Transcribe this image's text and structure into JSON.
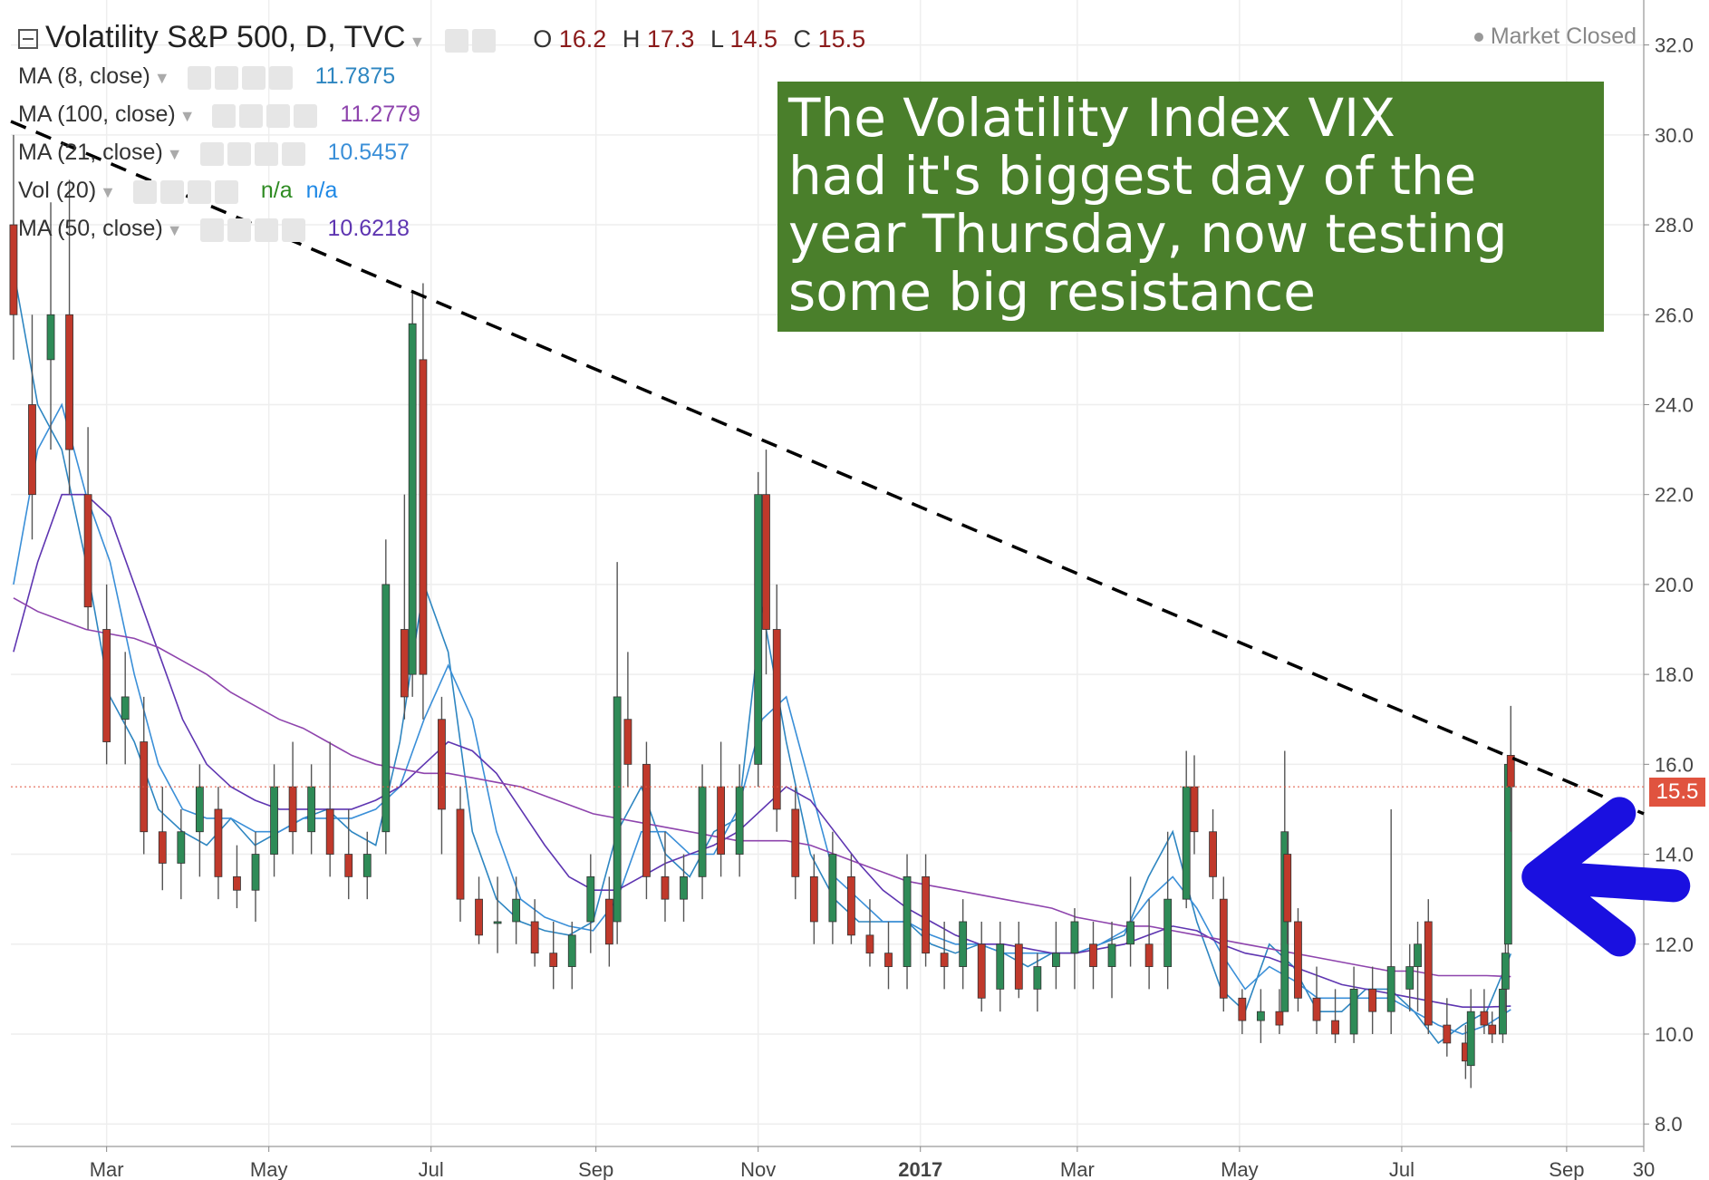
{
  "header": {
    "symbol_title": "Volatility S&P 500, D, TVC",
    "ohlc": {
      "o_label": "O",
      "o": "16.2",
      "h_label": "H",
      "h": "17.3",
      "l_label": "L",
      "l": "14.5",
      "c_label": "C",
      "c": "15.5"
    },
    "market_status": "Market Closed"
  },
  "indicators": [
    {
      "label": "MA (8, close)",
      "value": "11.7875",
      "color": "#2e86c1"
    },
    {
      "label": "MA (100, close)",
      "value": "11.2779",
      "color": "#8e44ad"
    },
    {
      "label": "MA (21, close)",
      "value": "10.5457",
      "color": "#3a8fd8"
    },
    {
      "label": "Vol (20)",
      "value": "n/a",
      "value2": "n/a",
      "color": "#2e8b22",
      "color2": "#1e88e5"
    },
    {
      "label": "MA (50, close)",
      "value": "10.6218",
      "color": "#5e35b1"
    }
  ],
  "annotation": {
    "line1": "The Volatility Index VIX",
    "line2": "had it's biggest day of the",
    "line3": "year Thursday, now testing",
    "line4": "some big resistance",
    "bg_color": "#4a7f2b"
  },
  "last_price_label": "15.5",
  "chart_data": {
    "type": "candlestick",
    "title": "Volatility S&P 500, D, TVC",
    "x_ticks": [
      "Mar",
      "May",
      "Jul",
      "Sep",
      "Nov",
      "2017",
      "Mar",
      "May",
      "Jul",
      "Sep",
      "30"
    ],
    "y_ticks": [
      "32.0",
      "30.0",
      "28.0",
      "26.0",
      "24.0",
      "22.0",
      "20.0",
      "18.0",
      "16.0",
      "14.0",
      "12.0",
      "10.0",
      "8.0"
    ],
    "ylim": [
      7.5,
      33
    ],
    "x_range": [
      "2016-01-25",
      "2017-09-30"
    ],
    "last_close": 15.5,
    "up_color": "#2e8b57",
    "down_color": "#c0392b",
    "ohlc": [
      {
        "date": "2016-01-26",
        "o": 28.0,
        "h": 30.0,
        "l": 25.0,
        "c": 26.0
      },
      {
        "date": "2016-02-02",
        "o": 24.0,
        "h": 26.0,
        "l": 21.0,
        "c": 22.0
      },
      {
        "date": "2016-02-09",
        "o": 25.0,
        "h": 28.5,
        "l": 23.0,
        "c": 26.0
      },
      {
        "date": "2016-02-16",
        "o": 26.0,
        "h": 29.0,
        "l": 22.0,
        "c": 23.0
      },
      {
        "date": "2016-02-23",
        "o": 22.0,
        "h": 23.5,
        "l": 19.0,
        "c": 19.5
      },
      {
        "date": "2016-03-01",
        "o": 19.0,
        "h": 20.0,
        "l": 16.0,
        "c": 16.5
      },
      {
        "date": "2016-03-08",
        "o": 17.0,
        "h": 18.5,
        "l": 16.0,
        "c": 17.5
      },
      {
        "date": "2016-03-15",
        "o": 16.5,
        "h": 17.5,
        "l": 14.0,
        "c": 14.5
      },
      {
        "date": "2016-03-22",
        "o": 14.5,
        "h": 15.5,
        "l": 13.2,
        "c": 13.8
      },
      {
        "date": "2016-03-29",
        "o": 13.8,
        "h": 15.0,
        "l": 13.0,
        "c": 14.5
      },
      {
        "date": "2016-04-05",
        "o": 14.5,
        "h": 16.0,
        "l": 13.5,
        "c": 15.5
      },
      {
        "date": "2016-04-12",
        "o": 15.0,
        "h": 15.5,
        "l": 13.0,
        "c": 13.5
      },
      {
        "date": "2016-04-19",
        "o": 13.5,
        "h": 14.2,
        "l": 12.8,
        "c": 13.2
      },
      {
        "date": "2016-04-26",
        "o": 13.2,
        "h": 14.5,
        "l": 12.5,
        "c": 14.0
      },
      {
        "date": "2016-05-03",
        "o": 14.0,
        "h": 16.0,
        "l": 13.5,
        "c": 15.5
      },
      {
        "date": "2016-05-10",
        "o": 15.5,
        "h": 16.5,
        "l": 14.0,
        "c": 14.5
      },
      {
        "date": "2016-05-17",
        "o": 14.5,
        "h": 16.0,
        "l": 14.0,
        "c": 15.5
      },
      {
        "date": "2016-05-24",
        "o": 15.0,
        "h": 16.5,
        "l": 13.5,
        "c": 14.0
      },
      {
        "date": "2016-05-31",
        "o": 14.0,
        "h": 15.0,
        "l": 13.0,
        "c": 13.5
      },
      {
        "date": "2016-06-07",
        "o": 13.5,
        "h": 14.5,
        "l": 13.0,
        "c": 14.0
      },
      {
        "date": "2016-06-14",
        "o": 14.5,
        "h": 21.0,
        "l": 14.0,
        "c": 20.0
      },
      {
        "date": "2016-06-21",
        "o": 19.0,
        "h": 22.0,
        "l": 17.0,
        "c": 17.5
      },
      {
        "date": "2016-06-24",
        "o": 18.0,
        "h": 26.5,
        "l": 17.5,
        "c": 25.8
      },
      {
        "date": "2016-06-28",
        "o": 25.0,
        "h": 26.7,
        "l": 17.0,
        "c": 18.0
      },
      {
        "date": "2016-07-05",
        "o": 17.0,
        "h": 17.5,
        "l": 14.0,
        "c": 15.0
      },
      {
        "date": "2016-07-12",
        "o": 15.0,
        "h": 15.5,
        "l": 12.5,
        "c": 13.0
      },
      {
        "date": "2016-07-19",
        "o": 13.0,
        "h": 13.5,
        "l": 12.0,
        "c": 12.2
      },
      {
        "date": "2016-07-26",
        "o": 12.5,
        "h": 13.5,
        "l": 11.8,
        "c": 12.5
      },
      {
        "date": "2016-08-02",
        "o": 12.5,
        "h": 13.5,
        "l": 12.0,
        "c": 13.0
      },
      {
        "date": "2016-08-09",
        "o": 12.5,
        "h": 13.0,
        "l": 11.5,
        "c": 11.8
      },
      {
        "date": "2016-08-16",
        "o": 11.8,
        "h": 12.5,
        "l": 11.0,
        "c": 11.5
      },
      {
        "date": "2016-08-23",
        "o": 11.5,
        "h": 12.5,
        "l": 11.0,
        "c": 12.2
      },
      {
        "date": "2016-08-30",
        "o": 12.5,
        "h": 14.0,
        "l": 11.8,
        "c": 13.5
      },
      {
        "date": "2016-09-06",
        "o": 13.0,
        "h": 13.5,
        "l": 11.5,
        "c": 12.0
      },
      {
        "date": "2016-09-09",
        "o": 12.5,
        "h": 20.5,
        "l": 12.0,
        "c": 17.5
      },
      {
        "date": "2016-09-13",
        "o": 17.0,
        "h": 18.5,
        "l": 15.5,
        "c": 16.0
      },
      {
        "date": "2016-09-20",
        "o": 16.0,
        "h": 16.5,
        "l": 13.0,
        "c": 13.5
      },
      {
        "date": "2016-09-27",
        "o": 13.5,
        "h": 14.5,
        "l": 12.5,
        "c": 13.0
      },
      {
        "date": "2016-10-04",
        "o": 13.0,
        "h": 14.0,
        "l": 12.5,
        "c": 13.5
      },
      {
        "date": "2016-10-11",
        "o": 13.5,
        "h": 16.0,
        "l": 13.0,
        "c": 15.5
      },
      {
        "date": "2016-10-18",
        "o": 15.5,
        "h": 16.5,
        "l": 13.5,
        "c": 14.0
      },
      {
        "date": "2016-10-25",
        "o": 14.0,
        "h": 16.0,
        "l": 13.5,
        "c": 15.5
      },
      {
        "date": "2016-11-01",
        "o": 16.0,
        "h": 22.5,
        "l": 15.5,
        "c": 22.0
      },
      {
        "date": "2016-11-04",
        "o": 22.0,
        "h": 23.0,
        "l": 18.0,
        "c": 19.0
      },
      {
        "date": "2016-11-08",
        "o": 19.0,
        "h": 20.0,
        "l": 14.5,
        "c": 15.0
      },
      {
        "date": "2016-11-15",
        "o": 15.0,
        "h": 15.5,
        "l": 13.0,
        "c": 13.5
      },
      {
        "date": "2016-11-22",
        "o": 13.5,
        "h": 14.0,
        "l": 12.0,
        "c": 12.5
      },
      {
        "date": "2016-11-29",
        "o": 12.5,
        "h": 14.5,
        "l": 12.0,
        "c": 14.0
      },
      {
        "date": "2016-12-06",
        "o": 13.5,
        "h": 14.0,
        "l": 12.0,
        "c": 12.2
      },
      {
        "date": "2016-12-13",
        "o": 12.2,
        "h": 13.0,
        "l": 11.5,
        "c": 11.8
      },
      {
        "date": "2016-12-20",
        "o": 11.8,
        "h": 12.5,
        "l": 11.0,
        "c": 11.5
      },
      {
        "date": "2016-12-27",
        "o": 11.5,
        "h": 14.0,
        "l": 11.0,
        "c": 13.5
      },
      {
        "date": "2017-01-03",
        "o": 13.5,
        "h": 14.0,
        "l": 11.5,
        "c": 11.8
      },
      {
        "date": "2017-01-10",
        "o": 11.8,
        "h": 12.5,
        "l": 11.0,
        "c": 11.5
      },
      {
        "date": "2017-01-17",
        "o": 11.5,
        "h": 13.0,
        "l": 11.0,
        "c": 12.5
      },
      {
        "date": "2017-01-24",
        "o": 12.0,
        "h": 12.5,
        "l": 10.5,
        "c": 10.8
      },
      {
        "date": "2017-01-31",
        "o": 11.0,
        "h": 12.5,
        "l": 10.5,
        "c": 12.0
      },
      {
        "date": "2017-02-07",
        "o": 12.0,
        "h": 12.5,
        "l": 10.8,
        "c": 11.0
      },
      {
        "date": "2017-02-14",
        "o": 11.0,
        "h": 11.8,
        "l": 10.5,
        "c": 11.5
      },
      {
        "date": "2017-02-21",
        "o": 11.5,
        "h": 12.5,
        "l": 11.0,
        "c": 11.8
      },
      {
        "date": "2017-02-28",
        "o": 11.8,
        "h": 12.8,
        "l": 11.0,
        "c": 12.5
      },
      {
        "date": "2017-03-07",
        "o": 12.0,
        "h": 12.5,
        "l": 11.0,
        "c": 11.5
      },
      {
        "date": "2017-03-14",
        "o": 11.5,
        "h": 12.5,
        "l": 10.8,
        "c": 12.0
      },
      {
        "date": "2017-03-21",
        "o": 12.0,
        "h": 13.5,
        "l": 11.5,
        "c": 12.5
      },
      {
        "date": "2017-03-28",
        "o": 12.0,
        "h": 13.0,
        "l": 11.0,
        "c": 11.5
      },
      {
        "date": "2017-04-04",
        "o": 11.5,
        "h": 14.5,
        "l": 11.0,
        "c": 13.0
      },
      {
        "date": "2017-04-11",
        "o": 13.0,
        "h": 16.3,
        "l": 12.8,
        "c": 15.5
      },
      {
        "date": "2017-04-14",
        "o": 15.5,
        "h": 16.2,
        "l": 14.0,
        "c": 14.5
      },
      {
        "date": "2017-04-21",
        "o": 14.5,
        "h": 15.0,
        "l": 13.0,
        "c": 13.5
      },
      {
        "date": "2017-04-25",
        "o": 13.0,
        "h": 13.5,
        "l": 10.5,
        "c": 10.8
      },
      {
        "date": "2017-05-02",
        "o": 10.8,
        "h": 11.0,
        "l": 10.0,
        "c": 10.3
      },
      {
        "date": "2017-05-09",
        "o": 10.3,
        "h": 11.0,
        "l": 9.8,
        "c": 10.5
      },
      {
        "date": "2017-05-16",
        "o": 10.5,
        "h": 11.0,
        "l": 10.0,
        "c": 10.2
      },
      {
        "date": "2017-05-18",
        "o": 10.5,
        "h": 16.3,
        "l": 10.5,
        "c": 14.5
      },
      {
        "date": "2017-05-19",
        "o": 14.0,
        "h": 14.5,
        "l": 12.0,
        "c": 12.5
      },
      {
        "date": "2017-05-23",
        "o": 12.5,
        "h": 12.8,
        "l": 10.5,
        "c": 10.8
      },
      {
        "date": "2017-05-30",
        "o": 10.8,
        "h": 11.5,
        "l": 10.0,
        "c": 10.3
      },
      {
        "date": "2017-06-06",
        "o": 10.3,
        "h": 11.0,
        "l": 9.8,
        "c": 10.0
      },
      {
        "date": "2017-06-13",
        "o": 10.0,
        "h": 11.5,
        "l": 9.8,
        "c": 11.0
      },
      {
        "date": "2017-06-20",
        "o": 11.0,
        "h": 11.5,
        "l": 10.0,
        "c": 10.5
      },
      {
        "date": "2017-06-27",
        "o": 10.5,
        "h": 15.0,
        "l": 10.0,
        "c": 11.5
      },
      {
        "date": "2017-07-04",
        "o": 11.0,
        "h": 12.0,
        "l": 10.5,
        "c": 11.5
      },
      {
        "date": "2017-07-07",
        "o": 11.5,
        "h": 12.5,
        "l": 10.5,
        "c": 12.0
      },
      {
        "date": "2017-07-11",
        "o": 12.5,
        "h": 13.0,
        "l": 10.0,
        "c": 10.2
      },
      {
        "date": "2017-07-18",
        "o": 10.2,
        "h": 10.8,
        "l": 9.5,
        "c": 9.8
      },
      {
        "date": "2017-07-25",
        "o": 9.8,
        "h": 10.2,
        "l": 9.0,
        "c": 9.4
      },
      {
        "date": "2017-07-27",
        "o": 9.3,
        "h": 11.0,
        "l": 8.8,
        "c": 10.5
      },
      {
        "date": "2017-08-01",
        "o": 10.5,
        "h": 11.0,
        "l": 10.0,
        "c": 10.2
      },
      {
        "date": "2017-08-04",
        "o": 10.2,
        "h": 10.5,
        "l": 9.8,
        "c": 10.0
      },
      {
        "date": "2017-08-08",
        "o": 10.0,
        "h": 11.5,
        "l": 9.8,
        "c": 11.0
      },
      {
        "date": "2017-08-09",
        "o": 11.0,
        "h": 12.0,
        "l": 10.5,
        "c": 11.8
      },
      {
        "date": "2017-08-10",
        "o": 12.0,
        "h": 16.2,
        "l": 11.8,
        "c": 16.0
      },
      {
        "date": "2017-08-11",
        "o": 16.2,
        "h": 17.3,
        "l": 14.5,
        "c": 15.5
      }
    ],
    "moving_averages": [
      {
        "name": "MA (8, close)",
        "color": "#2e86c1",
        "values": [
          27.0,
          24.0,
          23.0,
          20.5,
          17.5,
          16.5,
          15.0,
          14.5,
          14.2,
          14.8,
          14.2,
          14.5,
          14.8,
          15.0,
          14.5,
          14.2,
          16.5,
          20.0,
          18.5,
          14.5,
          13.0,
          12.5,
          12.3,
          12.2,
          12.5,
          14.5,
          15.5,
          14.0,
          13.5,
          14.5,
          14.8,
          19.5,
          16.5,
          14.0,
          13.0,
          12.5,
          12.5,
          12.5,
          12.0,
          11.8,
          12.0,
          11.8,
          11.5,
          11.8,
          11.8,
          12.0,
          12.2,
          13.5,
          14.5,
          12.5,
          11.0,
          10.5,
          12.0,
          11.5,
          10.5,
          10.5,
          11.0,
          11.0,
          10.5,
          9.8,
          10.2,
          10.5,
          11.7875
        ]
      },
      {
        "name": "MA (21, close)",
        "color": "#3a8fd8",
        "values": [
          20.0,
          23.0,
          24.0,
          22.0,
          20.5,
          18.0,
          16.0,
          15.0,
          14.8,
          14.8,
          14.5,
          14.5,
          14.8,
          14.8,
          14.8,
          15.0,
          15.5,
          17.0,
          18.2,
          17.0,
          14.5,
          13.0,
          12.6,
          12.4,
          12.3,
          13.0,
          14.5,
          14.5,
          14.0,
          14.0,
          15.0,
          17.0,
          17.5,
          15.5,
          13.5,
          13.0,
          12.5,
          12.5,
          12.2,
          12.0,
          12.0,
          11.8,
          11.8,
          11.8,
          11.8,
          12.0,
          12.3,
          13.0,
          13.5,
          12.8,
          11.8,
          11.0,
          11.5,
          11.2,
          10.8,
          10.8,
          10.8,
          10.8,
          10.5,
          10.2,
          10.0,
          10.2,
          10.5457
        ]
      },
      {
        "name": "MA (50, close)",
        "color": "#5e35b1",
        "values": [
          18.5,
          20.5,
          22.0,
          22.0,
          21.5,
          20.0,
          18.5,
          17.0,
          16.0,
          15.5,
          15.2,
          15.0,
          15.0,
          15.0,
          15.0,
          15.2,
          15.5,
          16.0,
          16.5,
          16.3,
          15.8,
          15.0,
          14.2,
          13.5,
          13.2,
          13.2,
          13.5,
          13.8,
          14.0,
          14.2,
          14.5,
          15.0,
          15.5,
          15.2,
          14.5,
          13.8,
          13.2,
          12.8,
          12.5,
          12.2,
          12.0,
          12.0,
          11.9,
          11.8,
          11.8,
          11.9,
          12.0,
          12.2,
          12.4,
          12.3,
          12.0,
          11.8,
          11.7,
          11.5,
          11.3,
          11.1,
          11.0,
          10.9,
          10.8,
          10.7,
          10.6,
          10.6,
          10.6218
        ]
      },
      {
        "name": "MA (100, close)",
        "color": "#8e44ad",
        "values": [
          19.7,
          19.4,
          19.2,
          19.0,
          18.9,
          18.8,
          18.6,
          18.3,
          18.0,
          17.6,
          17.3,
          17.0,
          16.8,
          16.5,
          16.2,
          16.0,
          15.9,
          15.8,
          15.8,
          15.7,
          15.6,
          15.5,
          15.3,
          15.1,
          14.9,
          14.8,
          14.7,
          14.6,
          14.5,
          14.4,
          14.3,
          14.3,
          14.3,
          14.2,
          14.0,
          13.8,
          13.6,
          13.4,
          13.3,
          13.2,
          13.1,
          13.0,
          12.9,
          12.8,
          12.6,
          12.5,
          12.4,
          12.4,
          12.3,
          12.2,
          12.1,
          12.0,
          11.9,
          11.8,
          11.7,
          11.6,
          11.5,
          11.4,
          11.4,
          11.3,
          11.3,
          11.3,
          11.2779
        ]
      }
    ],
    "trendline": {
      "style": "dashed",
      "color": "#000000",
      "from": {
        "date": "2016-01-25",
        "value": 30.3
      },
      "to": {
        "date": "2017-09-30",
        "value": 14.9
      }
    },
    "arrow_annotation": {
      "color": "#1a10e0",
      "direction": "left",
      "points_to": {
        "date": "2017-08-11",
        "value": 13.5
      }
    }
  }
}
